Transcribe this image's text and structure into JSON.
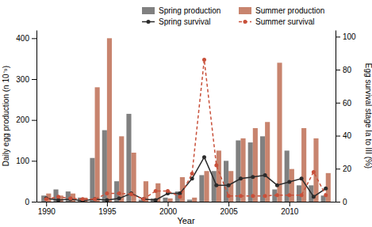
{
  "chart_data": {
    "type": "bar",
    "x_label": "Year",
    "y_label": "Daily egg production (n 10⁻⁹)",
    "y2_label": "Egg survival stage Ia to III (%)",
    "x": [
      1990,
      1991,
      1992,
      1993,
      1994,
      1995,
      1996,
      1997,
      1998,
      1999,
      2000,
      2001,
      2002,
      2003,
      2004,
      2005,
      2006,
      2007,
      2008,
      2009,
      2010,
      2011,
      2012,
      2013
    ],
    "xlim": [
      1989.2,
      2013.8
    ],
    "xticks": [
      1990,
      1995,
      2000,
      2005,
      2010
    ],
    "ylim": [
      0,
      420
    ],
    "yticks": [
      0,
      100,
      200,
      300,
      400
    ],
    "y2lim": [
      0,
      104
    ],
    "y2ticks": [
      0,
      20,
      40,
      60,
      80,
      100
    ],
    "grid": false,
    "legend": "upper right",
    "series": [
      {
        "name": "Spring production",
        "type": "bar",
        "color": "#808080",
        "values": [
          15,
          30,
          25,
          10,
          107,
          175,
          50,
          215,
          5,
          8,
          10,
          25,
          5,
          65,
          75,
          100,
          150,
          145,
          160,
          30,
          125,
          40,
          40,
          15
        ]
      },
      {
        "name": "Summer production",
        "type": "bar",
        "color": "#c8846e",
        "values": [
          20,
          15,
          20,
          10,
          280,
          400,
          160,
          120,
          50,
          45,
          8,
          60,
          10,
          75,
          125,
          75,
          155,
          180,
          195,
          340,
          80,
          180,
          155,
          70
        ]
      },
      {
        "name": "Spring survival",
        "type": "line",
        "axis": "y2",
        "color": "#2b2b2b",
        "marker": "circle",
        "line_style": "solid",
        "values": [
          2,
          1,
          1.5,
          0.5,
          1.5,
          1,
          2,
          5,
          1.5,
          1,
          5,
          5,
          14,
          27,
          10,
          10,
          14,
          15,
          16,
          10,
          12,
          14,
          3,
          8
        ]
      },
      {
        "name": "Summer survival",
        "type": "line",
        "axis": "y2",
        "color": "#c8503a",
        "marker": "circle",
        "line_style": "dashed",
        "values": [
          1.5,
          3,
          2,
          1.5,
          1.5,
          5,
          5,
          4.5,
          1.5,
          6.5,
          6.5,
          3,
          17,
          86,
          22,
          3.5,
          3.5,
          3.5,
          3.5,
          4,
          4,
          4,
          18,
          4
        ]
      }
    ]
  }
}
